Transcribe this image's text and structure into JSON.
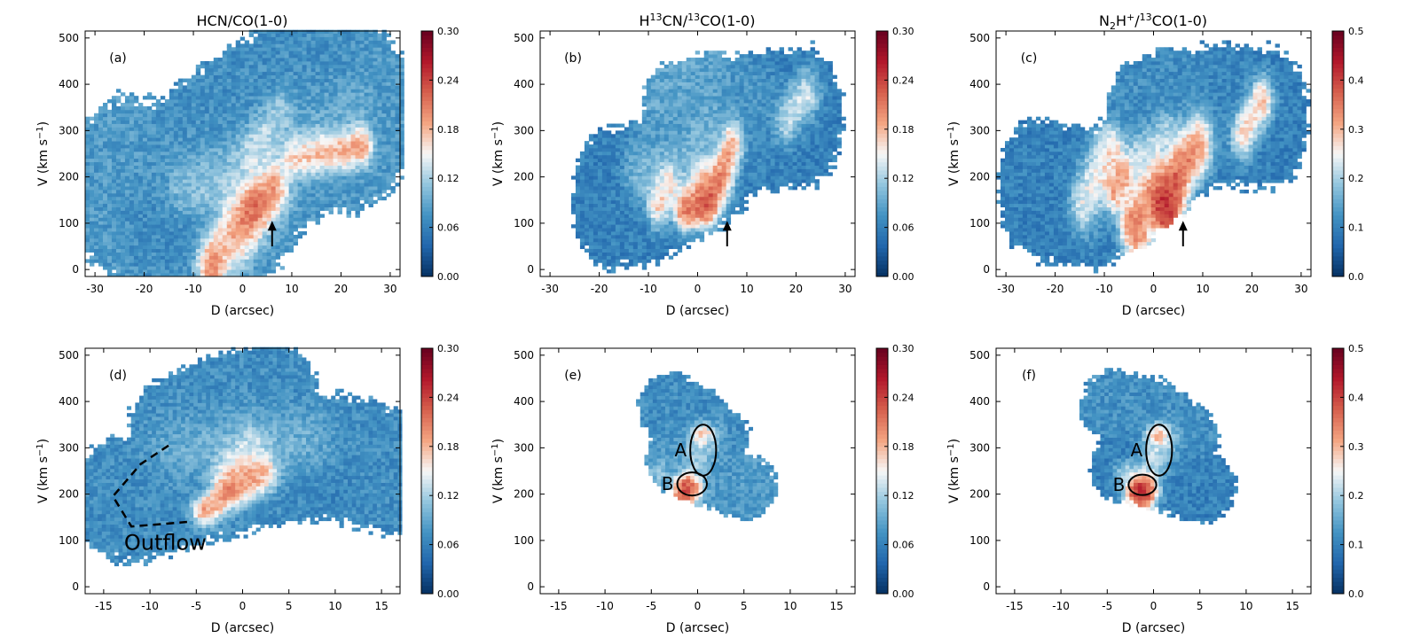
{
  "figure": {
    "titles": [
      {
        "main": "HCN/CO(1-0)"
      },
      {
        "pre": "H",
        "sup1": "13",
        "mid": "CN/",
        "sup2": "13",
        "post": "CO(1-0)"
      },
      {
        "pre": "N",
        "sub": "2",
        "mid": "H",
        "sup1": "+",
        "mid2": "/",
        "sup2": "13",
        "post": "CO(1-0)"
      }
    ],
    "xlabel": "D (arcsec)",
    "ylabel_pre": "V (km s",
    "ylabel_sup": "−1",
    "ylabel_post": ")"
  },
  "chart_data": [
    {
      "type": "heatmap",
      "panel": "(a)",
      "xlabel": "D (arcsec)",
      "ylabel": "V (km s-1)",
      "xlim": [
        -32,
        32
      ],
      "ylim": [
        -15,
        515
      ],
      "xticks": [
        -30,
        -20,
        -10,
        0,
        10,
        20,
        30
      ],
      "yticks": [
        0,
        100,
        200,
        300,
        400,
        500
      ],
      "colorbar": {
        "range": [
          0,
          0.3
        ],
        "ticks": [
          "0.00",
          "0.06",
          "0.12",
          "0.18",
          "0.24",
          "0.30"
        ],
        "colormap": "RdBu_r"
      },
      "annotations": [
        {
          "kind": "arrow",
          "x": 6,
          "y_from": 50,
          "y_to": 105
        }
      ],
      "blobs": [
        {
          "x": [
            -25,
            0,
            10,
            25
          ],
          "v": [
            175,
            145,
            290,
            335
          ],
          "w": 6.5,
          "val": 0.08
        },
        {
          "x": [
            -10,
            -2,
            8,
            18
          ],
          "v": [
            230,
            295,
            355,
            395
          ],
          "w": 6,
          "val": 0.07
        },
        {
          "x": [
            -20,
            -12,
            -3
          ],
          "v": [
            110,
            95,
            75
          ],
          "w": 3.5,
          "val": 0.06
        },
        {
          "x": [
            -8,
            2,
            10,
            22
          ],
          "v": [
            205,
            240,
            290,
            340
          ],
          "w": 3,
          "val": 0.12
        },
        {
          "x": [
            -12,
            -4,
            4
          ],
          "v": [
            170,
            175,
            265
          ],
          "w": 2.6,
          "val": 0.17
        },
        {
          "x": [
            2,
            5,
            8
          ],
          "v": [
            250,
            300,
            340
          ],
          "w": 2,
          "val": 0.19
        },
        {
          "x": [
            -6,
            0,
            6
          ],
          "v": [
            40,
            120,
            190
          ],
          "w": 2.6,
          "val": 0.33
        },
        {
          "x": [
            10,
            18,
            24
          ],
          "v": [
            250,
            262,
            275
          ],
          "w": 1.8,
          "val": 0.31
        },
        {
          "x": [
            -1,
            2
          ],
          "v": [
            80,
            140
          ],
          "w": 2.5,
          "val": 0.26
        }
      ]
    },
    {
      "type": "heatmap",
      "panel": "(b)",
      "xlabel": "D (arcsec)",
      "ylabel": "V (km s-1)",
      "xlim": [
        -32,
        32
      ],
      "ylim": [
        -15,
        515
      ],
      "xticks": [
        -30,
        -20,
        -10,
        0,
        10,
        20,
        30
      ],
      "yticks": [
        0,
        100,
        200,
        300,
        400,
        500
      ],
      "colorbar": {
        "range": [
          0,
          0.3
        ],
        "ticks": [
          "0.00",
          "0.06",
          "0.12",
          "0.18",
          "0.24",
          "0.30"
        ],
        "colormap": "RdBu_r"
      },
      "annotations": [
        {
          "kind": "arrow",
          "x": 6,
          "y_from": 50,
          "y_to": 105
        }
      ],
      "blobs": [
        {
          "x": [
            -18,
            -8,
            2,
            10,
            22
          ],
          "v": [
            155,
            170,
            230,
            320,
            330
          ],
          "w": 5,
          "val": 0.06
        },
        {
          "x": [
            -6,
            2,
            12
          ],
          "v": [
            340,
            365,
            345
          ],
          "w": 3.5,
          "val": 0.09
        },
        {
          "x": [
            -12,
            -5,
            3
          ],
          "v": [
            200,
            215,
            300
          ],
          "w": 2.5,
          "val": 0.13
        },
        {
          "x": [
            -8,
            -6
          ],
          "v": [
            150,
            185
          ],
          "w": 2,
          "val": 0.28
        },
        {
          "x": [
            -2,
            1
          ],
          "v": [
            160,
            200
          ],
          "w": 2,
          "val": 0.25
        },
        {
          "x": [
            2,
            5,
            7
          ],
          "v": [
            160,
            220,
            280
          ],
          "w": 2,
          "val": 0.32
        },
        {
          "x": [
            18,
            22
          ],
          "v": [
            325,
            370
          ],
          "w": 2,
          "val": 0.2
        },
        {
          "x": [
            -3,
            0
          ],
          "v": [
            130,
            140
          ],
          "w": 1.5,
          "val": 0.27
        }
      ]
    },
    {
      "type": "heatmap",
      "panel": "(c)",
      "xlabel": "D (arcsec)",
      "ylabel": "V (km s-1)",
      "xlim": [
        -32,
        32
      ],
      "ylim": [
        -15,
        515
      ],
      "xticks": [
        -30,
        -20,
        -10,
        0,
        10,
        20,
        30
      ],
      "yticks": [
        0,
        100,
        200,
        300,
        400,
        500
      ],
      "colorbar": {
        "range": [
          0,
          0.5
        ],
        "ticks": [
          "0.0",
          "0.1",
          "0.2",
          "0.3",
          "0.4",
          "0.5"
        ],
        "colormap": "RdBu_r"
      },
      "annotations": [
        {
          "kind": "arrow",
          "x": 6,
          "y_from": 50,
          "y_to": 105
        }
      ],
      "blobs": [
        {
          "x": [
            -24,
            -12,
            0,
            10,
            24
          ],
          "v": [
            175,
            150,
            230,
            330,
            330
          ],
          "w": 5,
          "val": 0.1
        },
        {
          "x": [
            -4,
            4,
            14
          ],
          "v": [
            345,
            375,
            360
          ],
          "w": 3.5,
          "val": 0.12
        },
        {
          "x": [
            -14,
            -8
          ],
          "v": [
            150,
            240
          ],
          "w": 2.5,
          "val": 0.38
        },
        {
          "x": [
            -8,
            -6
          ],
          "v": [
            170,
            200
          ],
          "w": 1.8,
          "val": 0.5
        },
        {
          "x": [
            -4,
            0
          ],
          "v": [
            120,
            200
          ],
          "w": 2.5,
          "val": 0.45
        },
        {
          "x": [
            2,
            5,
            9
          ],
          "v": [
            160,
            230,
            290
          ],
          "w": 2.5,
          "val": 0.55
        },
        {
          "x": [
            18,
            22
          ],
          "v": [
            300,
            360
          ],
          "w": 2,
          "val": 0.45
        },
        {
          "x": [
            -3,
            3
          ],
          "v": [
            250,
            300
          ],
          "w": 2,
          "val": 0.3
        }
      ]
    },
    {
      "type": "heatmap",
      "panel": "(d)",
      "xlabel": "D (arcsec)",
      "ylabel": "V (km s-1)",
      "xlim": [
        -17,
        17
      ],
      "ylim": [
        -15,
        515
      ],
      "xticks": [
        -15,
        -10,
        -5,
        0,
        5,
        10,
        15
      ],
      "yticks": [
        0,
        100,
        200,
        300,
        400,
        500
      ],
      "colorbar": {
        "range": [
          0,
          0.3
        ],
        "ticks": [
          "0.00",
          "0.06",
          "0.12",
          "0.18",
          "0.24",
          "0.30"
        ],
        "colormap": "RdBu_r"
      },
      "annotations": [
        {
          "kind": "dashed-outline",
          "points": [
            [
              -8,
              305
            ],
            [
              -11,
              265
            ],
            [
              -14,
              195
            ],
            [
              -12,
              130
            ],
            [
              -6,
              140
            ]
          ]
        },
        {
          "kind": "text",
          "text": "Outflow",
          "x": -12.8,
          "y": 80
        }
      ],
      "blobs": [
        {
          "x": [
            -12,
            -5,
            3,
            10,
            16
          ],
          "v": [
            190,
            230,
            270,
            280,
            250
          ],
          "w": 4.5,
          "val": 0.07
        },
        {
          "x": [
            -7,
            -2,
            3
          ],
          "v": [
            350,
            400,
            420
          ],
          "w": 3.5,
          "val": 0.07
        },
        {
          "x": [
            -6,
            0,
            6
          ],
          "v": [
            300,
            320,
            300
          ],
          "w": 3,
          "val": 0.12
        },
        {
          "x": [
            -1,
            1
          ],
          "v": [
            280,
            310
          ],
          "w": 1.5,
          "val": 0.2
        },
        {
          "x": [
            -1,
            2
          ],
          "v": [
            230,
            250
          ],
          "w": 1.8,
          "val": 0.32
        },
        {
          "x": [
            -4,
            -2
          ],
          "v": [
            170,
            200
          ],
          "w": 1.2,
          "val": 0.26
        },
        {
          "x": [
            5,
            9
          ],
          "v": [
            230,
            220
          ],
          "w": 2,
          "val": 0.06
        }
      ]
    },
    {
      "type": "heatmap",
      "panel": "(e)",
      "xlabel": "D (arcsec)",
      "ylabel": "V (km s-1)",
      "xlim": [
        -17,
        17
      ],
      "ylim": [
        -15,
        515
      ],
      "xticks": [
        -15,
        -10,
        -5,
        0,
        5,
        10,
        15
      ],
      "yticks": [
        0,
        100,
        200,
        300,
        400,
        500
      ],
      "colorbar": {
        "range": [
          0,
          0.3
        ],
        "ticks": [
          "0.00",
          "0.06",
          "0.12",
          "0.18",
          "0.24",
          "0.30"
        ],
        "colormap": "RdBu_r"
      },
      "annotations": [
        {
          "kind": "ellipse",
          "label": "A",
          "x": 0.6,
          "y": 295,
          "rx": 1.4,
          "ry": 55
        },
        {
          "kind": "ellipse",
          "label": "B",
          "x": -0.6,
          "y": 222,
          "rx": 1.6,
          "ry": 25
        }
      ],
      "blobs": [
        {
          "x": [
            -3,
            0,
            2
          ],
          "v": [
            390,
            360,
            320
          ],
          "w": 2.4,
          "val": 0.07
        },
        {
          "x": [
            -2,
            2,
            5
          ],
          "v": [
            270,
            240,
            215
          ],
          "w": 2.4,
          "val": 0.08
        },
        {
          "x": [
            0,
            1
          ],
          "v": [
            280,
            320
          ],
          "w": 1.4,
          "val": 0.16
        },
        {
          "x": [
            0.5
          ],
          "v": [
            330
          ],
          "w": 0.9,
          "val": 0.3
        },
        {
          "x": [
            -1
          ],
          "v": [
            222
          ],
          "w": 1.2,
          "val": 0.3
        },
        {
          "x": [
            -4
          ],
          "v": [
            250
          ],
          "w": 0.8,
          "val": 0.12
        }
      ]
    },
    {
      "type": "heatmap",
      "panel": "(f)",
      "xlabel": "D (arcsec)",
      "ylabel": "V (km s-1)",
      "xlim": [
        -17,
        17
      ],
      "ylim": [
        -15,
        515
      ],
      "xticks": [
        -15,
        -10,
        -5,
        0,
        5,
        10,
        15
      ],
      "yticks": [
        0,
        100,
        200,
        300,
        400,
        500
      ],
      "colorbar": {
        "range": [
          0,
          0.5
        ],
        "ticks": [
          "0.0",
          "0.1",
          "0.2",
          "0.3",
          "0.4",
          "0.5"
        ],
        "colormap": "RdBu_r"
      },
      "annotations": [
        {
          "kind": "ellipse",
          "label": "A",
          "x": 0.6,
          "y": 295,
          "rx": 1.4,
          "ry": 55
        },
        {
          "kind": "ellipse",
          "label": "B",
          "x": -1.2,
          "y": 220,
          "rx": 1.5,
          "ry": 22
        }
      ],
      "blobs": [
        {
          "x": [
            -4,
            0,
            3
          ],
          "v": [
            390,
            370,
            320
          ],
          "w": 2.6,
          "val": 0.12
        },
        {
          "x": [
            -3,
            2,
            5
          ],
          "v": [
            260,
            240,
            215
          ],
          "w": 2.6,
          "val": 0.1
        },
        {
          "x": [
            0,
            1
          ],
          "v": [
            270,
            320
          ],
          "w": 1.4,
          "val": 0.3
        },
        {
          "x": [
            0.5
          ],
          "v": [
            330
          ],
          "w": 0.9,
          "val": 0.45
        },
        {
          "x": [
            -1.2
          ],
          "v": [
            218
          ],
          "w": 1.4,
          "val": 0.6
        },
        {
          "x": [
            -3
          ],
          "v": [
            250
          ],
          "w": 1,
          "val": 0.28
        }
      ]
    }
  ]
}
